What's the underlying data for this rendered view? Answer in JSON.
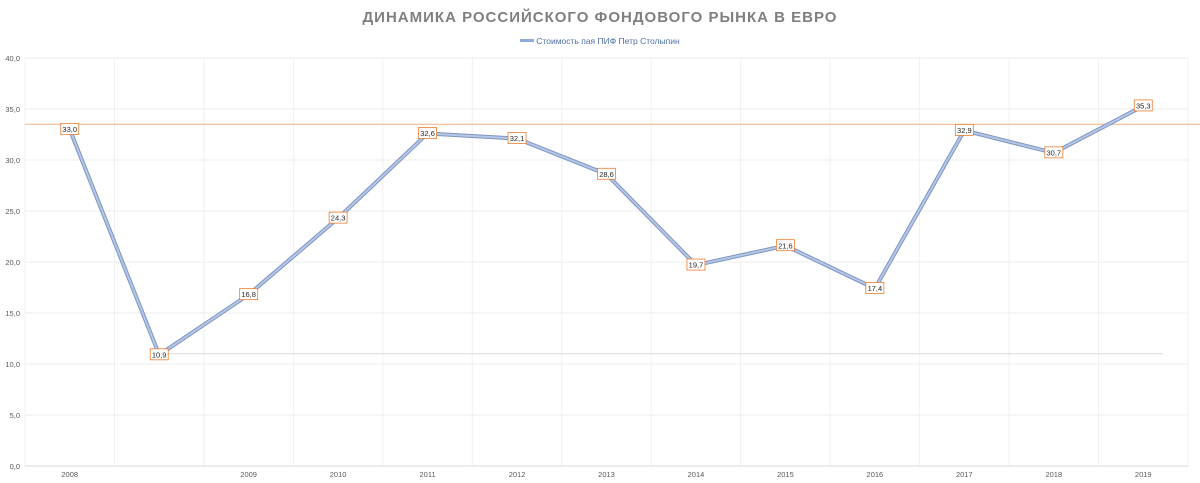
{
  "chart_data": {
    "type": "line",
    "title": "ДИНАМИКА РОССИЙСКОГО ФОНДОВОГО РЫНКА В ЕВРО",
    "legend_position": "top",
    "grid": true,
    "ylim": [
      0,
      40
    ],
    "y_ticks": [
      "0,0",
      "5,0",
      "10,0",
      "15,0",
      "20,0",
      "25,0",
      "30,0",
      "35,0",
      "40,0"
    ],
    "categories": [
      "2008",
      "",
      "2009",
      "2010",
      "2011",
      "2012",
      "2013",
      "2014",
      "2015",
      "2016",
      "2017",
      "2018",
      "2019"
    ],
    "series": [
      {
        "name": "Стоимость пая ПИФ  Петр Столыпин",
        "values": [
          33.0,
          10.9,
          16.8,
          24.3,
          32.6,
          32.1,
          28.6,
          19.7,
          21.6,
          17.4,
          32.9,
          30.7,
          35.3
        ],
        "labels": [
          "33,0",
          "10,9",
          "16,8",
          "24,3",
          "32,6",
          "32,1",
          "28,6",
          "19,7",
          "21,6",
          "17,4",
          "32,9",
          "30,7",
          "35,3"
        ],
        "color": "#8faadc"
      }
    ],
    "reference_lines": [
      {
        "value": 33.5,
        "color": "#f4b183"
      },
      {
        "value": 11.0,
        "color": "#d9d9d9"
      }
    ],
    "label_border_color": "#ed7d31"
  }
}
